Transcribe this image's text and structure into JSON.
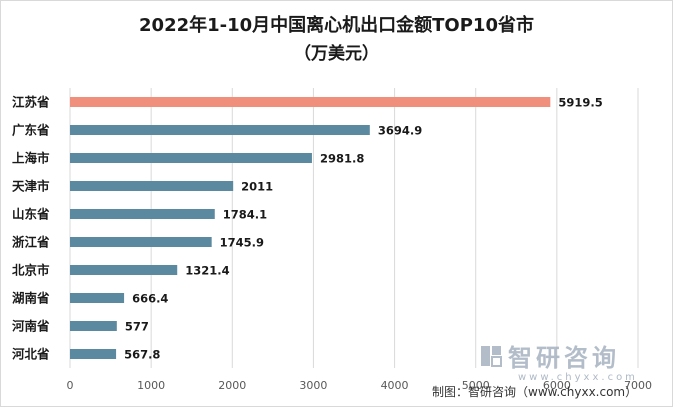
{
  "chart_data": {
    "type": "bar",
    "orientation": "horizontal",
    "title": "2022年1-10月中国离心机出口金额TOP10省市",
    "subtitle": "（万美元）",
    "categories": [
      "江苏省",
      "广东省",
      "上海市",
      "天津市",
      "山东省",
      "浙江省",
      "北京市",
      "湖南省",
      "河南省",
      "河北省"
    ],
    "values": [
      5919.5,
      3694.9,
      2981.8,
      2011,
      1784.1,
      1745.9,
      1321.4,
      666.4,
      577,
      567.8
    ],
    "value_labels": [
      "5919.5",
      "3694.9",
      "2981.8",
      "2011",
      "1784.1",
      "1745.9",
      "1321.4",
      "666.4",
      "577",
      "567.8"
    ],
    "xlim": [
      0,
      7000
    ],
    "x_ticks": [
      0,
      1000,
      2000,
      3000,
      4000,
      5000,
      6000,
      7000
    ],
    "grid": true,
    "highlight_color": "#f0907c",
    "bar_color": "#5b8aa0"
  },
  "watermark": {
    "brand": "智研咨询",
    "url": "www.chyxx.com"
  },
  "source": "制图：智研咨询（www.chyxx.com）"
}
